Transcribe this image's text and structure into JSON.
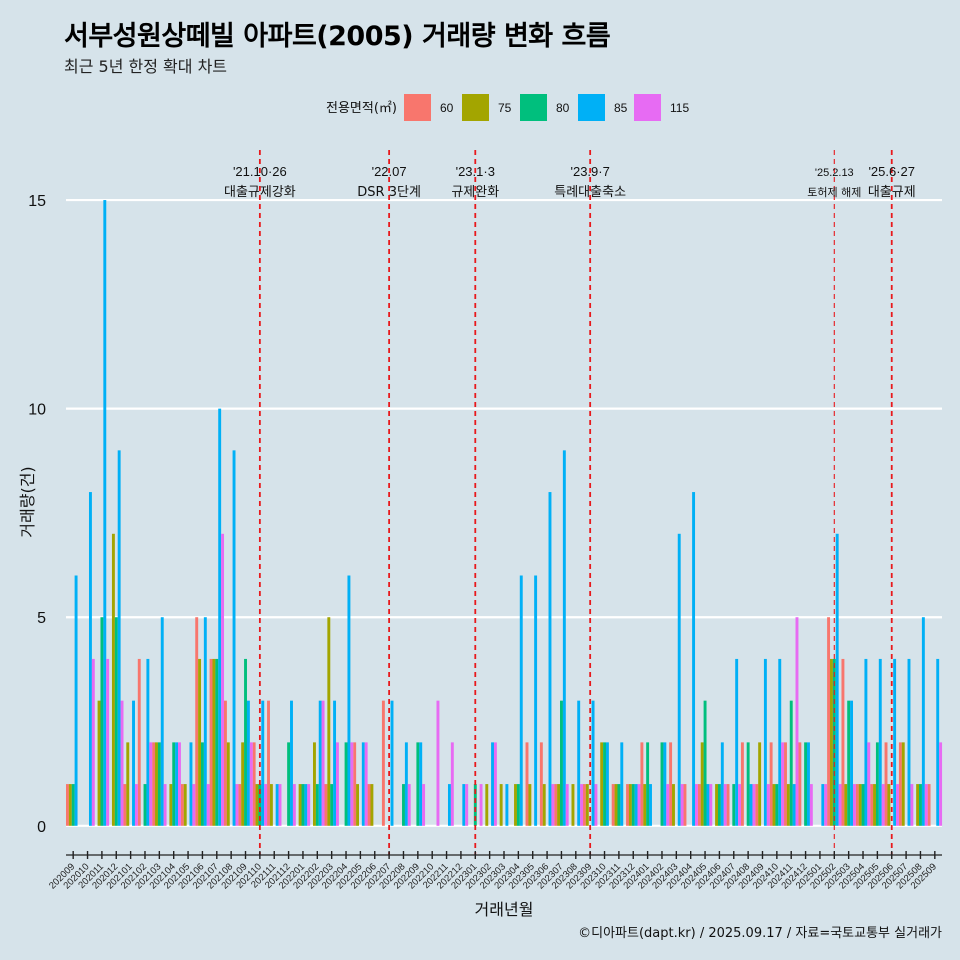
{
  "chart_data": {
    "type": "bar",
    "title": "서부성원상떼빌 아파트(2005) 거래량 변화 흐름",
    "subtitle": "최근 5년 한정 확대 차트",
    "xlabel": "거래년월",
    "ylabel": "거래량(건)",
    "ylim": [
      -0.7,
      16.2
    ],
    "yticks": [
      0,
      5,
      10,
      15
    ],
    "grid": true,
    "legend_title": "전용면적(㎡)",
    "legend_position": "top",
    "caption": "©디아파트(dapt.kr) / 2025.09.17 / 자료=국토교통부 실거래가",
    "categories": [
      "202009",
      "202010",
      "202011",
      "202012",
      "202101",
      "202102",
      "202103",
      "202104",
      "202105",
      "202106",
      "202107",
      "202108",
      "202109",
      "202110",
      "202111",
      "202112",
      "202201",
      "202202",
      "202203",
      "202204",
      "202205",
      "202206",
      "202207",
      "202208",
      "202209",
      "202210",
      "202211",
      "202212",
      "202301",
      "202302",
      "202303",
      "202304",
      "202305",
      "202306",
      "202307",
      "202308",
      "202309",
      "202310",
      "202311",
      "202312",
      "202401",
      "202402",
      "202403",
      "202404",
      "202405",
      "202406",
      "202407",
      "202408",
      "202409",
      "202410",
      "202411",
      "202412",
      "202501",
      "202502",
      "202503",
      "202504",
      "202505",
      "202506",
      "202507",
      "202508",
      "202509"
    ],
    "series": [
      {
        "name": "60",
        "color": "#f8766d",
        "values": [
          1,
          0,
          0,
          0,
          1,
          4,
          2,
          0,
          1,
          5,
          4,
          3,
          1,
          2,
          3,
          0,
          0,
          0,
          1,
          0,
          2,
          1,
          3,
          0,
          0,
          0,
          0,
          0,
          0,
          0,
          0,
          0,
          2,
          2,
          1,
          0,
          1,
          0,
          1,
          1,
          2,
          0,
          2,
          1,
          1,
          0,
          1,
          2,
          1,
          2,
          2,
          2,
          0,
          5,
          4,
          1,
          1,
          2,
          2,
          0,
          1
        ]
      },
      {
        "name": "75",
        "color": "#a3a500",
        "values": [
          1,
          0,
          3,
          7,
          2,
          0,
          2,
          1,
          1,
          4,
          4,
          2,
          2,
          1,
          1,
          0,
          1,
          2,
          5,
          0,
          1,
          1,
          0,
          0,
          0,
          0,
          0,
          0,
          0,
          1,
          1,
          1,
          1,
          1,
          1,
          1,
          1,
          2,
          1,
          1,
          1,
          0,
          1,
          0,
          2,
          1,
          0,
          0,
          2,
          1,
          1,
          0,
          0,
          4,
          1,
          1,
          1,
          1,
          2,
          1,
          0
        ]
      },
      {
        "name": "80",
        "color": "#00bf7d",
        "values": [
          1,
          0,
          5,
          5,
          0,
          1,
          2,
          2,
          0,
          2,
          4,
          0,
          4,
          1,
          0,
          2,
          1,
          1,
          1,
          2,
          0,
          0,
          0,
          1,
          2,
          0,
          0,
          0,
          1,
          0,
          0,
          1,
          0,
          0,
          3,
          0,
          0,
          2,
          1,
          1,
          2,
          2,
          0,
          0,
          3,
          1,
          1,
          2,
          0,
          1,
          3,
          2,
          0,
          4,
          3,
          1,
          2,
          0,
          0,
          1,
          0
        ]
      },
      {
        "name": "85",
        "color": "#00b0f6",
        "values": [
          6,
          8,
          15,
          9,
          3,
          4,
          5,
          2,
          2,
          5,
          10,
          9,
          3,
          3,
          1,
          3,
          1,
          3,
          3,
          6,
          2,
          0,
          3,
          2,
          2,
          0,
          1,
          1,
          0,
          2,
          1,
          6,
          6,
          8,
          9,
          3,
          3,
          2,
          2,
          1,
          1,
          2,
          7,
          8,
          1,
          2,
          4,
          1,
          4,
          4,
          1,
          2,
          1,
          7,
          3,
          4,
          4,
          4,
          4,
          5,
          4
        ]
      },
      {
        "name": "115",
        "color": "#e76bf3",
        "values": [
          0,
          4,
          4,
          3,
          1,
          2,
          1,
          2,
          1,
          1,
          7,
          1,
          2,
          1,
          1,
          1,
          1,
          3,
          2,
          2,
          2,
          0,
          0,
          1,
          1,
          3,
          2,
          1,
          1,
          2,
          0,
          0,
          0,
          1,
          1,
          1,
          1,
          0,
          0,
          1,
          0,
          1,
          1,
          1,
          1,
          1,
          1,
          1,
          1,
          2,
          5,
          1,
          1,
          1,
          1,
          2,
          1,
          1,
          1,
          1,
          2
        ]
      }
    ],
    "events": [
      {
        "label": "'21.10·26",
        "desc": "대출규제강화",
        "at": "202110"
      },
      {
        "label": "'22.07",
        "desc": "DSR 3단계",
        "at": "202207"
      },
      {
        "label": "'23.1·3",
        "desc": "규제완화",
        "at": "202301"
      },
      {
        "label": "'23.9·7",
        "desc": "특례대출축소",
        "at": "202309"
      },
      {
        "label": "'25.2.13",
        "desc": "토허제 해제",
        "at": "202502"
      },
      {
        "label": "'25.6·27",
        "desc": "대출규제",
        "at": "202506"
      }
    ]
  }
}
